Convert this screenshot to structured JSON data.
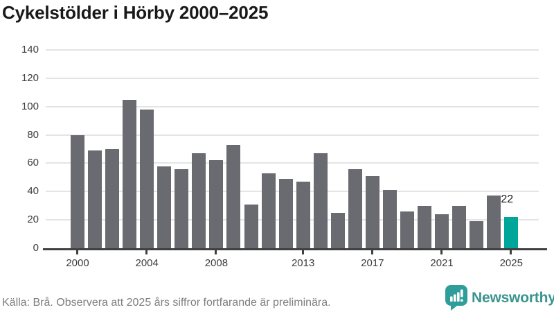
{
  "title": "Cykelstölder i Hörby 2000–2025",
  "chart_data": {
    "type": "bar",
    "title": "Cykelstölder i Hörby 2000–2025",
    "xlabel": "",
    "ylabel": "",
    "categories": [
      2000,
      2001,
      2002,
      2003,
      2004,
      2005,
      2006,
      2007,
      2008,
      2009,
      2010,
      2011,
      2012,
      2013,
      2014,
      2015,
      2016,
      2017,
      2018,
      2019,
      2020,
      2021,
      2022,
      2023,
      2024,
      2025
    ],
    "values": [
      80,
      69,
      70,
      105,
      98,
      58,
      56,
      67,
      62,
      73,
      31,
      53,
      49,
      47,
      67,
      25,
      56,
      51,
      41,
      26,
      30,
      24,
      30,
      19,
      37,
      22
    ],
    "ylim": [
      0,
      140
    ],
    "y_ticks": [
      0,
      20,
      40,
      60,
      80,
      100,
      120,
      140
    ],
    "x_tick_years": [
      2000,
      2004,
      2008,
      2013,
      2017,
      2021,
      2025
    ],
    "x_tick_labels": [
      "2000",
      "2004",
      "2008",
      "2013",
      "2017",
      "2021",
      "2025"
    ],
    "grid": true,
    "legend": "none",
    "bar_color": "#6a6a71",
    "highlight_color": "#00a69a",
    "highlight_index": 25,
    "highlight_value_label": "22"
  },
  "footer": {
    "source": "Källa: Brå. Observera att 2025 års siffror fortfarande är preliminära."
  },
  "branding": {
    "name": "Newsworthy",
    "logo_icon": "bar-chart-speech-bubble-icon",
    "icon_color": "#2f9e9a",
    "text_color": "#3a948f"
  }
}
